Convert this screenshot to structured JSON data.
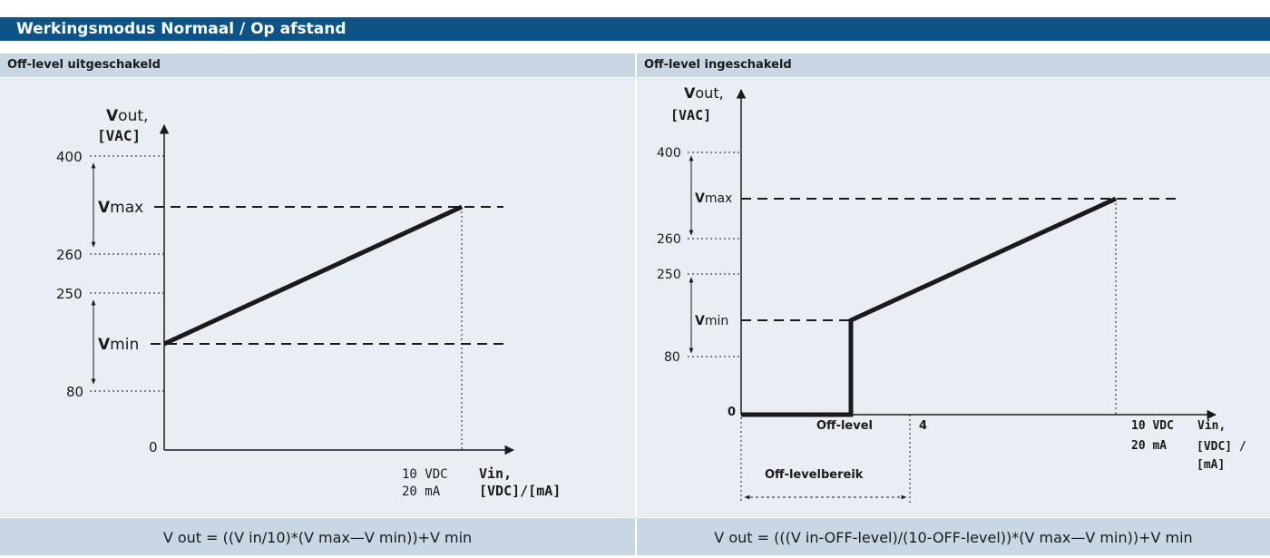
{
  "header": {
    "title": "Werkingsmodus Normaal / Op afstand"
  },
  "left": {
    "subtitle": "Off-level uitgeschakeld",
    "y_label_v": "V",
    "y_label_rest": "out,",
    "y_unit": "[VAC]",
    "ticks": [
      "400",
      "260",
      "250",
      "80",
      "0"
    ],
    "vmax_v": "V",
    "vmax_rest": "max",
    "vmin_v": "V",
    "vmin_rest": "min",
    "x_tick_1": "10 VDC",
    "x_tick_2": "20 mA",
    "x_label_1": "Vin,",
    "x_label_2": "[VDC]/[mA]",
    "formula": "V out = ((V in/10)*(V max—V min))+V min"
  },
  "right": {
    "subtitle": "Off-level ingeschakeld",
    "y_label_v": "V",
    "y_label_rest": "out,",
    "y_unit": "[VAC]",
    "ticks": [
      "400",
      "260",
      "250",
      "80",
      "0"
    ],
    "vmax_v": "V",
    "vmax_rest": "max",
    "vmin_v": "V",
    "vmin_rest": "min",
    "x_off": "Off-level",
    "x_four": "4",
    "x_tick_1": "10 VDC",
    "x_tick_2": "20 mA",
    "x_label_1": "Vin,",
    "x_label_2": "[VDC] /",
    "x_label_3": "[mA]",
    "range_label": "Off-levelbereik",
    "formula": "V out = (((V in-OFF-level)/(10-OFF-level))*(V max—V min))+V min"
  },
  "colors": {
    "header": "#0e5387",
    "subheader": "#c9d6e3",
    "panel": "#e8eef4"
  }
}
